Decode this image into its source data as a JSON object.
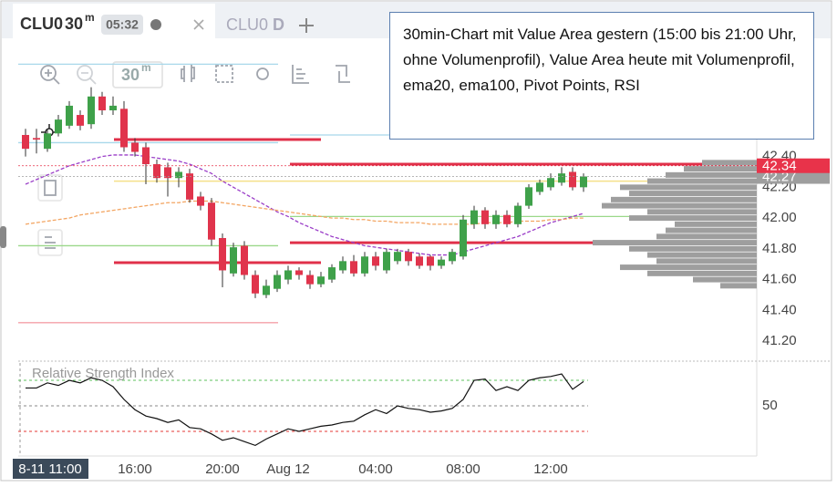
{
  "tabs": [
    {
      "symbol": "CLU0",
      "interval": "30",
      "interval_unit": "m",
      "timer": "05:32"
    },
    {
      "symbol": "CLU0",
      "interval": "D"
    }
  ],
  "toolbar": {
    "interval": "30",
    "interval_unit": "m"
  },
  "annotation": "30min-Chart mit Value Area gestern (15:00 bis 21:00 Uhr, ohne Volumenprofil), Value Area heute mit Volumenprofil, ema20, ema100, Pivot Points, RSI",
  "chart_data": [
    {
      "type": "candlestick",
      "categories": [
        "8-11 11:00",
        null,
        null,
        null,
        null,
        null,
        null,
        null,
        null,
        null,
        "16:00",
        null,
        null,
        null,
        null,
        null,
        null,
        null,
        "20:00",
        null,
        null,
        null,
        null,
        null,
        "Aug 12",
        null,
        null,
        null,
        null,
        null,
        null,
        null,
        "04:00",
        null,
        null,
        null,
        null,
        null,
        null,
        null,
        "08:00",
        null,
        null,
        null,
        null,
        null,
        null,
        null,
        "12:00",
        null,
        null,
        null
      ],
      "open": [
        42.54,
        42.52,
        42.45,
        42.55,
        42.6,
        42.67,
        42.61,
        42.79,
        42.7,
        42.71,
        42.49,
        42.46,
        42.35,
        42.33,
        42.26,
        42.29,
        42.14,
        42.1,
        41.87,
        41.64,
        41.82,
        41.63,
        41.5,
        41.54,
        41.6,
        41.66,
        41.63,
        41.57,
        41.6,
        41.66,
        41.72,
        41.64,
        41.75,
        41.66,
        41.72,
        41.78,
        41.75,
        41.75,
        41.69,
        41.72,
        41.75,
        41.96,
        42.05,
        41.96,
        42.02,
        41.96,
        42.08,
        42.17,
        42.2,
        42.23,
        42.3,
        42.2
      ],
      "high": [
        42.58,
        42.58,
        42.58,
        42.67,
        42.76,
        42.7,
        42.85,
        42.82,
        42.79,
        42.76,
        42.52,
        42.49,
        42.38,
        42.36,
        42.33,
        42.32,
        42.17,
        42.13,
        41.9,
        41.84,
        41.85,
        41.66,
        41.6,
        41.66,
        41.69,
        41.68,
        41.66,
        41.65,
        41.7,
        41.75,
        41.76,
        41.78,
        41.78,
        41.8,
        41.8,
        41.8,
        41.77,
        41.76,
        41.75,
        41.8,
        42.02,
        42.08,
        42.07,
        42.05,
        42.05,
        42.1,
        42.22,
        42.25,
        42.29,
        42.33,
        42.33,
        42.29
      ],
      "low": [
        42.4,
        42.42,
        42.43,
        42.53,
        42.58,
        42.57,
        42.58,
        42.67,
        42.67,
        42.43,
        42.4,
        42.22,
        42.23,
        42.14,
        42.2,
        42.1,
        42.05,
        41.82,
        41.55,
        41.62,
        41.6,
        41.48,
        41.48,
        41.52,
        41.57,
        41.6,
        41.54,
        41.55,
        41.58,
        41.64,
        41.62,
        41.62,
        41.66,
        41.64,
        41.7,
        41.69,
        41.67,
        41.66,
        41.67,
        41.7,
        41.73,
        41.93,
        41.93,
        41.93,
        41.94,
        41.94,
        42.06,
        42.15,
        42.18,
        42.21,
        42.18,
        42.17
      ],
      "close": [
        42.45,
        42.51,
        42.55,
        42.64,
        42.73,
        42.6,
        42.79,
        42.7,
        42.73,
        42.46,
        42.43,
        42.35,
        42.26,
        42.26,
        42.3,
        42.12,
        42.08,
        41.86,
        41.66,
        41.81,
        41.63,
        41.51,
        41.56,
        41.63,
        41.66,
        41.63,
        41.57,
        41.62,
        41.68,
        41.72,
        41.64,
        41.75,
        41.69,
        41.78,
        41.78,
        41.72,
        41.69,
        41.69,
        41.73,
        41.78,
        41.99,
        42.05,
        41.96,
        42.02,
        41.96,
        42.08,
        42.2,
        42.23,
        42.26,
        42.29,
        42.2,
        42.27
      ],
      "up_color": "#3fa14a",
      "down_color": "#e0344c",
      "overlays": [
        {
          "color": "#9b3fc8",
          "values": [
            42.22,
            42.25,
            42.28,
            42.31,
            42.34,
            42.36,
            42.38,
            42.4,
            42.41,
            42.41,
            42.41,
            42.4,
            42.39,
            42.38,
            42.37,
            42.35,
            42.32,
            42.29,
            42.24,
            42.2,
            42.16,
            42.12,
            42.08,
            42.04,
            42.01,
            41.97,
            41.94,
            41.91,
            41.88,
            41.86,
            41.84,
            41.82,
            41.81,
            41.8,
            41.79,
            41.78,
            41.77,
            41.76,
            41.76,
            41.76,
            41.78,
            41.8,
            41.82,
            41.84,
            41.86,
            41.88,
            41.91,
            41.94,
            41.97,
            41.99,
            42.01,
            42.03
          ]
        },
        {
          "color": "#f3a562",
          "values": [
            41.96,
            41.97,
            41.98,
            41.99,
            42.0,
            42.02,
            42.03,
            42.04,
            42.05,
            42.06,
            42.07,
            42.08,
            42.09,
            42.1,
            42.1,
            42.11,
            42.11,
            42.11,
            42.1,
            42.09,
            42.08,
            42.07,
            42.06,
            42.05,
            42.04,
            42.03,
            42.02,
            42.01,
            42.0,
            42.0,
            41.99,
            41.99,
            41.98,
            41.98,
            41.97,
            41.97,
            41.97,
            41.96,
            41.96,
            41.96,
            41.96,
            41.96,
            41.97,
            41.97,
            41.97,
            41.98,
            41.98,
            41.98,
            41.99,
            41.99,
            42.0,
            42.0
          ]
        }
      ],
      "levels": {
        "value_area_yesterday": [
          {
            "value": 42.51,
            "color": "#e0304a"
          },
          {
            "value": 41.71,
            "color": "#e0304a"
          }
        ],
        "pivots_yesterday": [
          {
            "value": 43.0,
            "color": "#a8d8ea"
          },
          {
            "value": 42.49,
            "color": "#a8d8ea"
          },
          {
            "value": 41.82,
            "color": "#9bd88a"
          },
          {
            "value": 41.32,
            "color": "#f4a0a8"
          }
        ],
        "value_area_today": [
          {
            "value": 42.35,
            "color": "#e0304a"
          },
          {
            "value": 41.84,
            "color": "#e0304a"
          }
        ],
        "pivots_today": [
          {
            "value": 42.54,
            "color": "#a8d8ea"
          },
          {
            "value": 42.01,
            "color": "#9bd88a"
          }
        ],
        "poc": [
          {
            "value": 42.24,
            "color": "#f5e08a"
          }
        ]
      },
      "profile": {
        "color": "#9e9e9e",
        "prices": [
          41.56,
          41.6,
          41.64,
          41.68,
          41.72,
          41.76,
          41.8,
          41.84,
          41.88,
          41.92,
          41.96,
          42.0,
          42.04,
          42.08,
          42.12,
          42.16,
          42.2,
          42.24,
          42.28,
          42.32,
          42.36
        ],
        "volumes": [
          40,
          70,
          120,
          150,
          110,
          120,
          140,
          180,
          110,
          100,
          90,
          140,
          120,
          170,
          160,
          140,
          150,
          120,
          100,
          80,
          60
        ]
      },
      "markers": [
        {
          "value": 42.27,
          "color": "#9e9e9e"
        },
        {
          "value": 42.34,
          "color": "#e8334a"
        }
      ],
      "ylim": [
        41.07,
        43.18
      ],
      "yticks": [
        {
          "value": 41.2,
          "label": "41.20"
        },
        {
          "value": 41.4,
          "label": "41.40"
        },
        {
          "value": 41.6,
          "label": "41.60"
        },
        {
          "value": 41.8,
          "label": "41.80"
        },
        {
          "value": 42.0,
          "label": "42.00"
        },
        {
          "value": 42.2,
          "label": "42.20"
        },
        {
          "value": 42.4,
          "label": "42.40"
        }
      ]
    },
    {
      "type": "line",
      "title": "Relative Strength Index",
      "color": "#111111",
      "values": [
        64,
        64,
        68,
        66,
        70,
        68,
        72,
        70,
        65,
        55,
        47,
        42,
        40,
        37,
        39,
        33,
        32,
        28,
        23,
        25,
        22,
        19,
        24,
        28,
        32,
        30,
        32,
        34,
        35,
        37,
        38,
        43,
        47,
        44,
        50,
        48,
        47,
        45,
        46,
        48,
        55,
        70,
        71,
        62,
        65,
        62,
        70,
        72,
        73,
        75,
        63,
        69
      ],
      "levels": [
        {
          "value": 70,
          "color": "#5cc05c"
        },
        {
          "value": 50,
          "color": "#888888"
        },
        {
          "value": 30,
          "color": "#e53935"
        }
      ],
      "ylim": [
        10.7,
        83.6
      ],
      "yticks": [
        50
      ]
    }
  ]
}
